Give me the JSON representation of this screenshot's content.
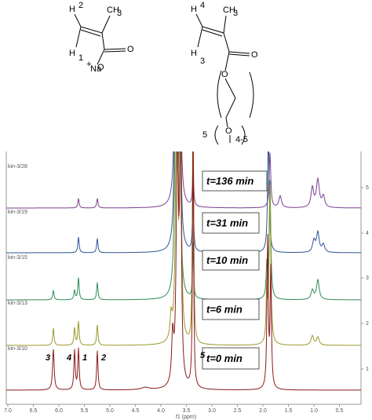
{
  "left_molecule": [
    "H",
    "2",
    "CH",
    "3",
    "H",
    "1",
    "O",
    "+",
    "Na",
    "O"
  ],
  "right_molecule": [
    "H",
    "4",
    "CH",
    "3",
    "H",
    "3",
    "O",
    "O",
    "O",
    "5",
    "4-5"
  ],
  "spectrum": {
    "trace_names": [
      "kin-3/28",
      "kin-3/19",
      "kin-3/15",
      "kin-3/13",
      "kin-3/10"
    ],
    "time_labels": [
      "t=136 min",
      "t=31 min",
      "t=10 min",
      "t=6 min",
      "t=0 min"
    ],
    "peak_labels": [
      "3",
      "4",
      "1",
      "2",
      "5"
    ],
    "x_ticks": [
      "7.0",
      "6.5",
      "6.0",
      "5.5",
      "5.0",
      "4.5",
      "4.0",
      "3.5",
      "3.0",
      "2.5",
      "2.0",
      "1.5",
      "1.0",
      "0.5"
    ],
    "x_axis_label": "f1 (ppm)",
    "y_ticks": [
      "5",
      "4",
      "3",
      "2",
      "1"
    ]
  }
}
